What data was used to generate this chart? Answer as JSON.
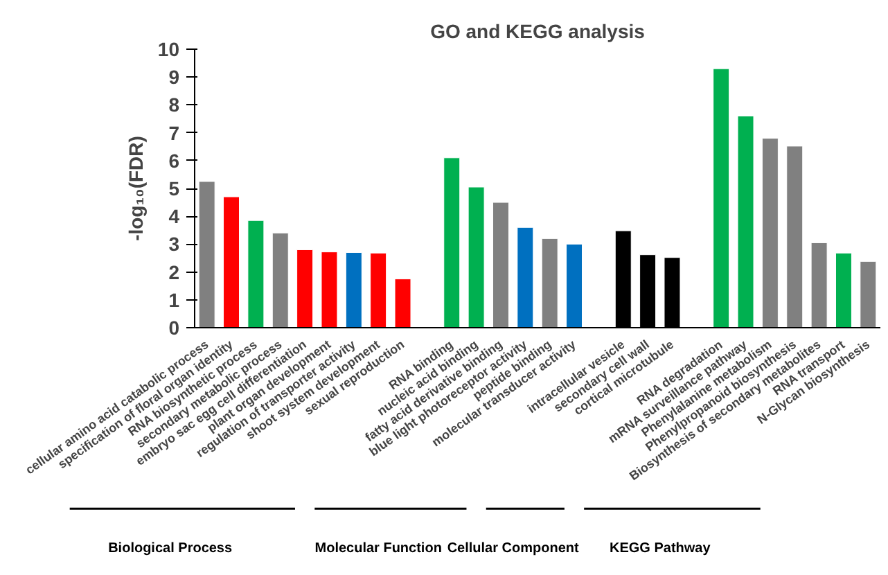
{
  "chart_data": {
    "type": "bar",
    "title": "GO and KEGG analysis",
    "ylabel": "-log₁₀(FDR)",
    "categories": [
      "cellular amino acid catabolic process",
      "specification of floral organ identity",
      "RNA biosynthetic process",
      "secondary metabolic process",
      "embryo sac egg cell differentiation",
      "plant organ development",
      "regulation of transporter activity",
      "shoot system development",
      "sexual reproduction",
      null,
      "RNA binding",
      "nucleic acid binding",
      "fatty acid derivative binding",
      "blue light photoreceptor activity",
      "peptide binding",
      "molecular transducer activity",
      null,
      "intracellular vesicle",
      "secondary cell wall",
      "cortical microtubule",
      null,
      "RNA degradation",
      "mRNA surveillance pathway",
      "Phenylalanine metabolism",
      "Phenylpropanoid biosynthesis",
      "Biosynthesis of secondary metabolites",
      "RNA transport",
      "N-Glycan biosynthesis"
    ],
    "values": [
      5.25,
      4.7,
      3.85,
      3.4,
      2.8,
      2.72,
      2.7,
      2.68,
      1.75,
      null,
      6.1,
      5.05,
      4.5,
      3.6,
      3.2,
      3.0,
      null,
      3.48,
      2.62,
      2.52,
      null,
      9.3,
      7.6,
      6.8,
      6.52,
      3.05,
      2.68,
      2.38
    ],
    "colors": [
      "#808080",
      "#ff0000",
      "#00b050",
      "#808080",
      "#ff0000",
      "#ff0000",
      "#0070c0",
      "#ff0000",
      "#ff0000",
      null,
      "#00b050",
      "#00b050",
      "#808080",
      "#0070c0",
      "#808080",
      "#0070c0",
      null,
      "#000000",
      "#000000",
      "#000000",
      null,
      "#00b050",
      "#00b050",
      "#808080",
      "#808080",
      "#808080",
      "#00b050",
      "#808080"
    ],
    "ylim": [
      0,
      10
    ],
    "yticks": [
      0,
      1,
      2,
      3,
      4,
      5,
      6,
      7,
      8,
      9,
      10
    ],
    "grid": false,
    "annotations": [
      "Biological Process",
      "Molecular Function",
      "Cellular Component",
      "KEGG Pathway"
    ]
  }
}
